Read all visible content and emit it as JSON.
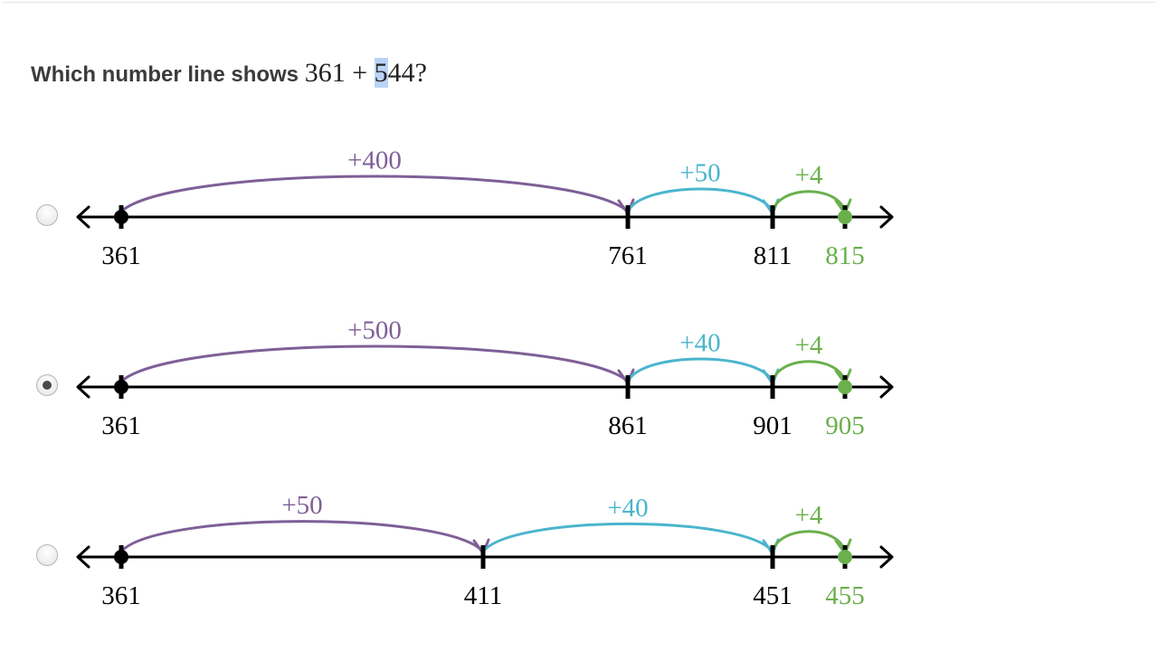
{
  "question": {
    "prefix": "Which number line shows ",
    "expr_a": "361 + ",
    "expr_hl": "5",
    "expr_b": "44?"
  },
  "colors": {
    "purple": "#7f5f97",
    "blue": "#4ab5cd",
    "green": "#6ab04c",
    "axis": "#000000"
  },
  "options": [
    {
      "selected": false,
      "marks": [
        {
          "value": 361,
          "label": "361",
          "pos": 0,
          "color": "black",
          "dot": true
        },
        {
          "value": 761,
          "label": "761",
          "pos": 0.7,
          "color": "black",
          "dot": false
        },
        {
          "value": 811,
          "label": "811",
          "pos": 0.9,
          "color": "black",
          "dot": false
        },
        {
          "value": 815,
          "label": "815",
          "pos": 1.0,
          "color": "green",
          "dot": true
        }
      ],
      "jumps": [
        {
          "from": 0,
          "to": 1,
          "label": "+400",
          "color": "purple"
        },
        {
          "from": 1,
          "to": 2,
          "label": "+50",
          "color": "blue"
        },
        {
          "from": 2,
          "to": 3,
          "label": "+4",
          "color": "green"
        }
      ]
    },
    {
      "selected": true,
      "marks": [
        {
          "value": 361,
          "label": "361",
          "pos": 0,
          "color": "black",
          "dot": true
        },
        {
          "value": 861,
          "label": "861",
          "pos": 0.7,
          "color": "black",
          "dot": false
        },
        {
          "value": 901,
          "label": "901",
          "pos": 0.9,
          "color": "black",
          "dot": false
        },
        {
          "value": 905,
          "label": "905",
          "pos": 1.0,
          "color": "green",
          "dot": true
        }
      ],
      "jumps": [
        {
          "from": 0,
          "to": 1,
          "label": "+500",
          "color": "purple"
        },
        {
          "from": 1,
          "to": 2,
          "label": "+40",
          "color": "blue"
        },
        {
          "from": 2,
          "to": 3,
          "label": "+4",
          "color": "green"
        }
      ]
    },
    {
      "selected": false,
      "marks": [
        {
          "value": 361,
          "label": "361",
          "pos": 0,
          "color": "black",
          "dot": true
        },
        {
          "value": 411,
          "label": "411",
          "pos": 0.5,
          "color": "black",
          "dot": false
        },
        {
          "value": 451,
          "label": "451",
          "pos": 0.9,
          "color": "black",
          "dot": false
        },
        {
          "value": 455,
          "label": "455",
          "pos": 1.0,
          "color": "green",
          "dot": true
        }
      ],
      "jumps": [
        {
          "from": 0,
          "to": 1,
          "label": "+50",
          "color": "purple"
        },
        {
          "from": 1,
          "to": 2,
          "label": "+40",
          "color": "blue"
        },
        {
          "from": 2,
          "to": 3,
          "label": "+4",
          "color": "green"
        }
      ]
    }
  ]
}
